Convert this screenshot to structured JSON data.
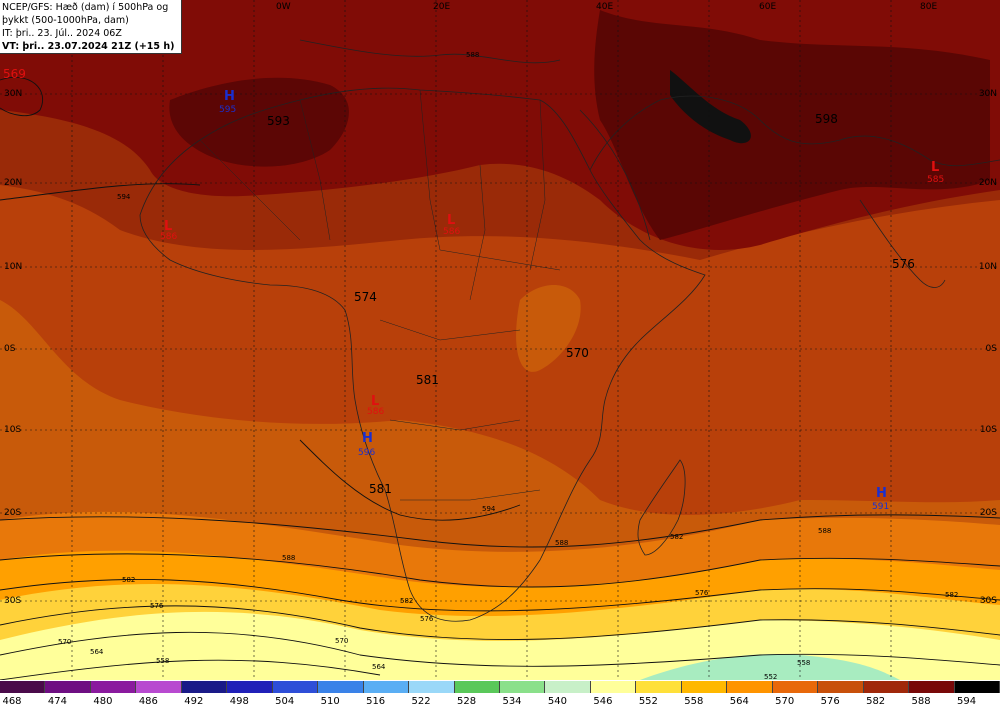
{
  "header": {
    "line1": "NCEP/GFS: Hæð (dam) í 500hPa og",
    "line2": "þykkt (500-1000hPa, dam)",
    "line3": "IT: þri.. 23. Júl.. 2024 06Z",
    "line4": "VT: þri.. 23.07.2024 21Z (+15 h)"
  },
  "longitudes": [
    "0W",
    "20E",
    "40E",
    "60E",
    "80E"
  ],
  "latitudes_left": [
    "30N",
    "20N",
    "10N",
    "0S",
    "10S",
    "20S",
    "30S"
  ],
  "latitudes_right": [
    "30N",
    "20N",
    "10N",
    "0S",
    "10S",
    "20S",
    "30S"
  ],
  "contour_labels": {
    "big": [
      "593",
      "574",
      "570",
      "581",
      "581",
      "576",
      "598",
      "569"
    ],
    "small": [
      "594",
      "588",
      "588",
      "582",
      "576",
      "570",
      "564",
      "558",
      "582",
      "576",
      "570",
      "564",
      "558",
      "552",
      "588",
      "582",
      "594",
      "588",
      "582",
      "576"
    ]
  },
  "pressure_centers": [
    {
      "type": "H",
      "value": "595"
    },
    {
      "type": "L",
      "value": "586"
    },
    {
      "type": "L",
      "value": "586"
    },
    {
      "type": "L",
      "value": "586"
    },
    {
      "type": "H",
      "value": "596"
    },
    {
      "type": "H",
      "value": "591"
    },
    {
      "type": "L",
      "value": "585"
    }
  ],
  "legend": {
    "values": [
      "468",
      "474",
      "480",
      "486",
      "492",
      "498",
      "504",
      "510",
      "516",
      "522",
      "528",
      "534",
      "540",
      "546",
      "552",
      "558",
      "564",
      "570",
      "576",
      "582",
      "588",
      "594"
    ],
    "colors": [
      "#4a0a4a",
      "#6e0e82",
      "#8a1a9e",
      "#b84ad0",
      "#1a1a88",
      "#2020b8",
      "#2e4ed8",
      "#3a82e8",
      "#5aaef4",
      "#9ad8f8",
      "#5ac85a",
      "#8ae08a",
      "#c8f0c8",
      "#ffff9a",
      "#ffe03a",
      "#ffb800",
      "#ff9400",
      "#e8680a",
      "#c8500a",
      "#a0280a",
      "#780808",
      "#000000"
    ]
  }
}
